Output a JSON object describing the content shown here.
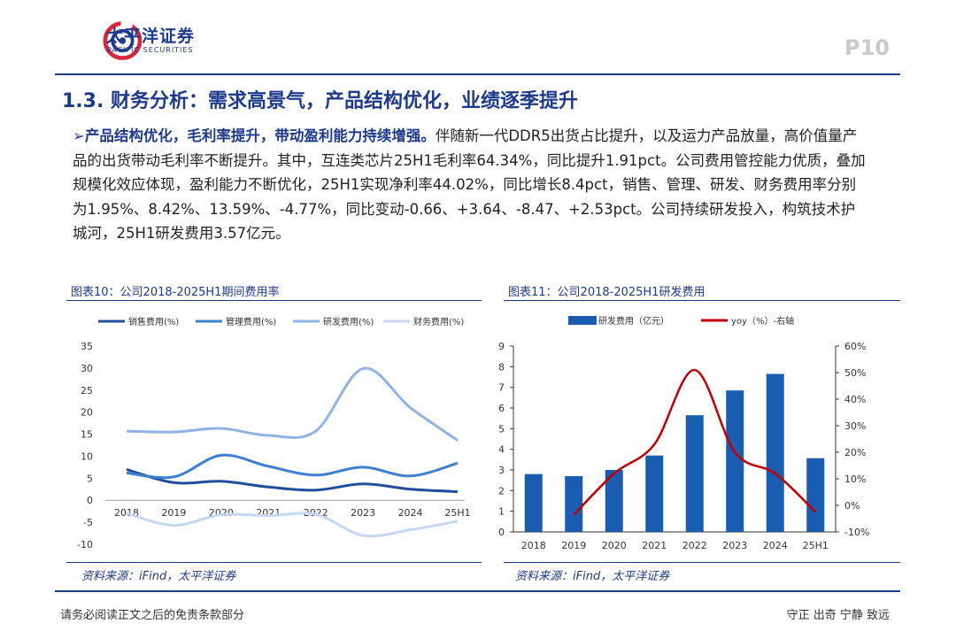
{
  "header": {
    "logo_cn": "太平洋证券",
    "logo_en": "PACIFIC SECURITIES",
    "page_number": "P10"
  },
  "title": "1.3. 财务分析：需求高景气，产品结构优化，业绩逐季提升",
  "body": {
    "lead": "产品结构优化，毛利率提升，带动盈利能力持续增强。",
    "text": "伴随新一代DDR5出货占比提升，以及运力产品放量，高价值量产品的出货带动毛利率不断提升。其中，互连类芯片25H1毛利率64.34%，同比提升1.91pct。公司费用管控能力优质，叠加规模化效应体现，盈利能力不断优化，25H1实现净利率44.02%，同比增长8.4pct，销售、管理、研发、财务费用率分别为1.95%、8.42%、13.59%、-4.77%，同比变动-0.66、+3.64、-8.47、+2.53pct。公司持续研发投入，构筑技术护城河，25H1研发费用3.57亿元。"
  },
  "figure10": {
    "title": "图表10：公司2018-2025H1期间费用率",
    "source": "资料来源：iFind，太平洋证券"
  },
  "figure11": {
    "title": "图表11：公司2018-2025H1研发费用",
    "source": "资料来源：iFind，太平洋证券"
  },
  "footer": {
    "left": "请务必阅读正文之后的免责条款部分",
    "right": "守正 出奇 宁静 致远"
  },
  "colors": {
    "brand_blue": "#1f3a8a",
    "selling": "#1f4e9c",
    "admin": "#3f7fcf",
    "rd": "#8fb4e3",
    "finance": "#c5d8f0",
    "bar": "#1a5cb0",
    "yoy_line": "#c00000"
  },
  "chart_data": [
    {
      "type": "line",
      "title": "",
      "categories": [
        "2018",
        "2019",
        "2020",
        "2021",
        "2022",
        "2023",
        "2024",
        "25H1"
      ],
      "series": [
        {
          "name": "销售费用(%)",
          "values": [
            7.0,
            4.0,
            4.3,
            3.0,
            2.3,
            3.7,
            2.5,
            1.95
          ]
        },
        {
          "name": "管理费用(%)",
          "values": [
            6.2,
            5.3,
            10.2,
            7.7,
            5.7,
            7.5,
            5.5,
            8.42
          ]
        },
        {
          "name": "研发费用(%)",
          "values": [
            15.7,
            15.5,
            16.3,
            14.7,
            15.7,
            29.9,
            21.0,
            13.59
          ]
        },
        {
          "name": "财务费用(%)",
          "values": [
            -3.0,
            -5.7,
            -3.3,
            -3.5,
            -3.2,
            -8.0,
            -6.7,
            -4.77
          ]
        }
      ],
      "yticks": [
        "35",
        "30",
        "25",
        "20",
        "15",
        "10",
        "5",
        "0",
        "-5",
        "-10"
      ],
      "ylim": [
        -10,
        35
      ],
      "legend": "top"
    },
    {
      "type": "bar",
      "title": "",
      "categories": [
        "2018",
        "2019",
        "2020",
        "2021",
        "2022",
        "2023",
        "2024",
        "25H1"
      ],
      "series": [
        {
          "name": "研发费用（亿元）",
          "values": [
            2.8,
            2.7,
            3.0,
            3.7,
            5.65,
            6.85,
            7.65,
            3.57
          ]
        },
        {
          "name": "yoy（%）-右轴",
          "values": [
            null,
            -3.6,
            12.0,
            23.0,
            51.0,
            20.0,
            12.0,
            -2.5
          ]
        }
      ],
      "yticks_left": [
        "9",
        "8",
        "7",
        "6",
        "5",
        "4",
        "3",
        "2",
        "1",
        "0"
      ],
      "yticks_right": [
        "60%",
        "50%",
        "40%",
        "30%",
        "20%",
        "10%",
        "0%",
        "-10%"
      ],
      "ylim_left": [
        0,
        9
      ],
      "ylim_right": [
        -10,
        60
      ],
      "legend": "top"
    }
  ]
}
